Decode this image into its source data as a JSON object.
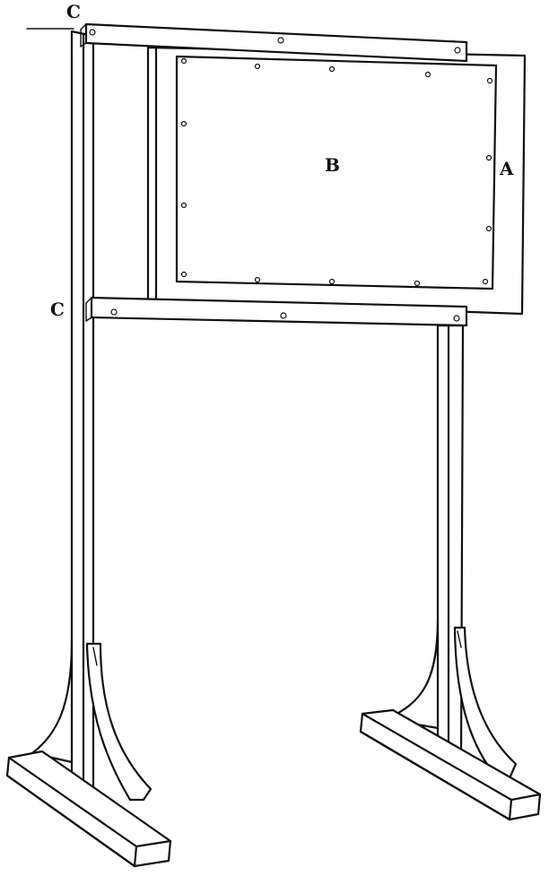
{
  "figure": {
    "labels": {
      "frame": "A",
      "board": "B",
      "bar_top": "C",
      "bar_bottom": "C"
    }
  }
}
